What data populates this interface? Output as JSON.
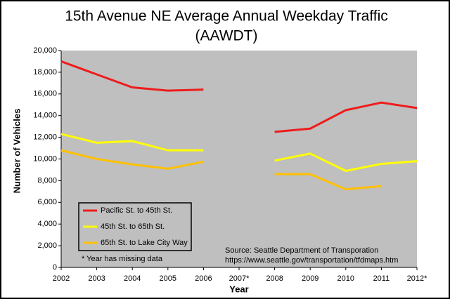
{
  "chart_data": {
    "type": "line",
    "title": [
      "15th Avenue NE Average Annual Weekday Traffic",
      "(AAWDT)"
    ],
    "x_label": "Year",
    "y_label": "Number of Vehicles",
    "categories": [
      "2002",
      "2003",
      "2004",
      "2005",
      "2006",
      "2007*",
      "2008",
      "2009",
      "2010",
      "2011",
      "2012*"
    ],
    "series": [
      {
        "name": "Pacific St. to 45th St.",
        "color": "#ee1c1c",
        "values": [
          19000,
          17800,
          16600,
          16300,
          16400,
          null,
          12500,
          12800,
          14500,
          15200,
          14700
        ]
      },
      {
        "name": "45th St. to 65th St.",
        "color": "#ffff00",
        "values": [
          12300,
          11500,
          11650,
          10800,
          10800,
          null,
          9850,
          10500,
          8900,
          9550,
          9800
        ]
      },
      {
        "name": "65th St. to Lake City Way",
        "color": "#ffc000",
        "values": [
          10800,
          10000,
          9500,
          9100,
          9750,
          null,
          8600,
          8600,
          7200,
          7500,
          null
        ]
      }
    ],
    "ylim": [
      0,
      20000
    ],
    "yticks": [
      0,
      {
        "value": 2000,
        "label": "2,000"
      },
      {
        "value": 4000,
        "label": "4,000"
      },
      {
        "value": 6000,
        "label": "6,000"
      },
      {
        "value": 8000,
        "label": "8,000"
      },
      {
        "value": 10000,
        "label": "10,000"
      },
      {
        "value": 12000,
        "label": "12,000"
      },
      {
        "value": 14000,
        "label": "14,000"
      },
      {
        "value": 16000,
        "label": "16,000"
      },
      {
        "value": 18000,
        "label": "18,000"
      },
      {
        "value": 20000,
        "label": "20,000"
      }
    ],
    "grid": false,
    "plot_background": "#bfbfbf",
    "legend_position": "lower-left",
    "annotations": [
      "* Year has missing data",
      "Source: Seattle Department  of Transporation",
      "https://www.seattle.gov/transportation/tfdmaps.htm"
    ]
  }
}
